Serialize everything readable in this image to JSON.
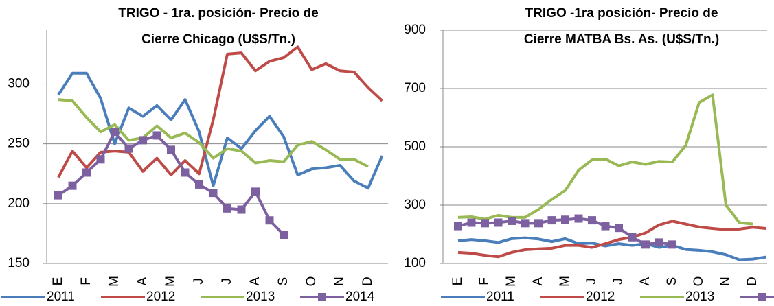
{
  "chart_data": [
    {
      "type": "line",
      "title": [
        "TRIGO - 1ra. posición- Precio de",
        "Cierre Chicago (U$S/Tn.)"
      ],
      "categories": [
        "E",
        null,
        "F",
        null,
        "M",
        null,
        "A",
        null,
        "M",
        null,
        "J",
        null,
        "J",
        null,
        "A",
        null,
        "S",
        null,
        "O",
        null,
        "N",
        null,
        "D",
        null
      ],
      "ylim": [
        150,
        345
      ],
      "yticks": [
        150,
        200,
        250,
        300
      ],
      "grid": true,
      "series": [
        {
          "name": "2011",
          "color": "#4a7ebb",
          "values": [
            291,
            309,
            309,
            288,
            250,
            280,
            273,
            282,
            270,
            287,
            260,
            215,
            255,
            246,
            261,
            273,
            256,
            224,
            229,
            230,
            232,
            219,
            213,
            240
          ]
        },
        {
          "name": "2012",
          "color": "#be4b48",
          "values": [
            222,
            244,
            230,
            243,
            244,
            243,
            227,
            238,
            224,
            236,
            225,
            270,
            325,
            326,
            311,
            319,
            322,
            331,
            312,
            317,
            311,
            310,
            297,
            286
          ]
        },
        {
          "name": "2013",
          "color": "#98b954",
          "values": [
            287,
            286,
            272,
            260,
            266,
            253,
            255,
            265,
            255,
            259,
            251,
            238,
            246,
            244,
            234,
            236,
            235,
            249,
            252,
            245,
            237,
            237,
            231,
            null
          ]
        },
        {
          "name": "2014",
          "color": "#7d60a0",
          "marker": "square",
          "values": [
            207,
            215,
            226,
            237,
            260,
            246,
            253,
            257,
            245,
            226,
            216,
            209,
            196,
            195,
            210,
            186,
            174,
            null,
            null,
            null,
            null,
            null,
            null,
            null
          ]
        }
      ]
    },
    {
      "type": "line",
      "title": [
        "TRIGO -1ra posición- Precio de",
        "Cierre MATBA Bs. As. (U$S/Tn.)"
      ],
      "categories": [
        "E",
        null,
        "F",
        null,
        "M",
        null,
        "A",
        null,
        "M",
        null,
        "J",
        null,
        "J",
        null,
        "A",
        null,
        "S",
        null,
        "O",
        null,
        "N",
        null,
        "D",
        null
      ],
      "ylim": [
        100,
        900
      ],
      "yticks": [
        100,
        300,
        500,
        700,
        900
      ],
      "grid": true,
      "series": [
        {
          "name": "2011",
          "color": "#4a7ebb",
          "values": [
            178,
            182,
            178,
            172,
            185,
            188,
            184,
            175,
            185,
            168,
            170,
            160,
            168,
            162,
            168,
            155,
            162,
            148,
            145,
            140,
            130,
            113,
            115,
            122
          ]
        },
        {
          "name": "2012",
          "color": "#be4b48",
          "values": [
            138,
            135,
            128,
            123,
            138,
            147,
            150,
            152,
            162,
            162,
            155,
            168,
            182,
            190,
            205,
            232,
            245,
            235,
            225,
            220,
            216,
            218,
            224,
            220
          ]
        },
        {
          "name": "2013",
          "color": "#98b954",
          "values": [
            258,
            260,
            252,
            265,
            258,
            258,
            285,
            320,
            350,
            420,
            455,
            458,
            435,
            448,
            440,
            450,
            448,
            505,
            652,
            678,
            300,
            240,
            235,
            null
          ]
        },
        {
          "name": "2014",
          "color": "#7d60a0",
          "marker": "square",
          "values": [
            228,
            240,
            238,
            240,
            246,
            238,
            238,
            248,
            250,
            254,
            248,
            228,
            222,
            190,
            165,
            172,
            165,
            null,
            null,
            null,
            null,
            null,
            null,
            null
          ]
        }
      ]
    }
  ]
}
